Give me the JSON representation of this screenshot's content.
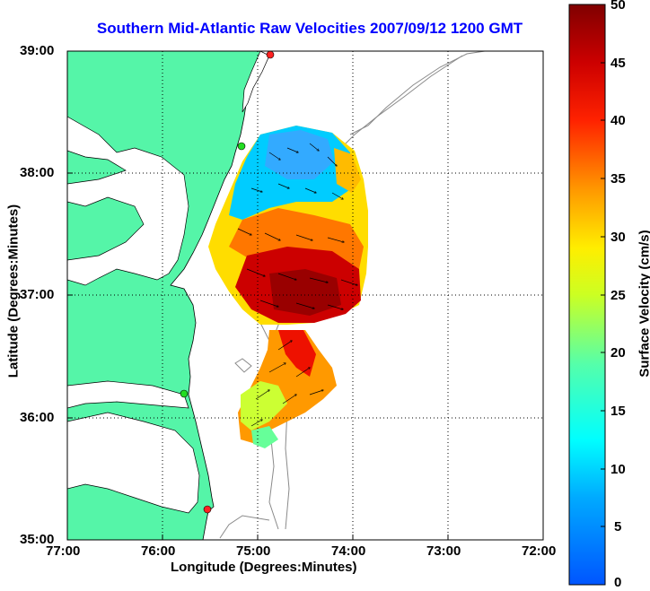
{
  "title": "Southern Mid-Atlantic Raw Velocities 2007/09/12 1200 GMT",
  "xlabel": "Longitude (Degrees:Minutes)",
  "ylabel": "Latitude (Degrees:Minutes)",
  "colorbar_label": "Surface Velocity (cm/s)",
  "x_ticks": [
    "77:00",
    "76:00",
    "75:00",
    "74:00",
    "73:00",
    "72:00"
  ],
  "y_ticks": [
    "39:00",
    "38:00",
    "37:00",
    "36:00",
    "35:00"
  ],
  "colorbar_ticks": [
    "50",
    "45",
    "40",
    "35",
    "30",
    "25",
    "20",
    "15",
    "10",
    "5",
    "0"
  ],
  "colors": {
    "land": "#55f5a8",
    "water": "#ffffff",
    "bathymetry": "#8a8a8a",
    "station_active": "#22dd22",
    "station_inactive": "#ff2222",
    "title": "#0000ff"
  },
  "map": {
    "lon_range": [
      -77,
      -72
    ],
    "lat_range": [
      35,
      39
    ],
    "grid": true,
    "stations": [
      {
        "lon": -74.85,
        "lat": 38.95,
        "status": "inactive"
      },
      {
        "lon": -75.15,
        "lat": 38.22,
        "status": "active"
      },
      {
        "lon": -75.75,
        "lat": 36.2,
        "status": "active"
      },
      {
        "lon": -75.5,
        "lat": 35.27,
        "status": "inactive"
      }
    ]
  },
  "colorbar": {
    "min": 0,
    "max": 50,
    "colormap": "jet"
  }
}
